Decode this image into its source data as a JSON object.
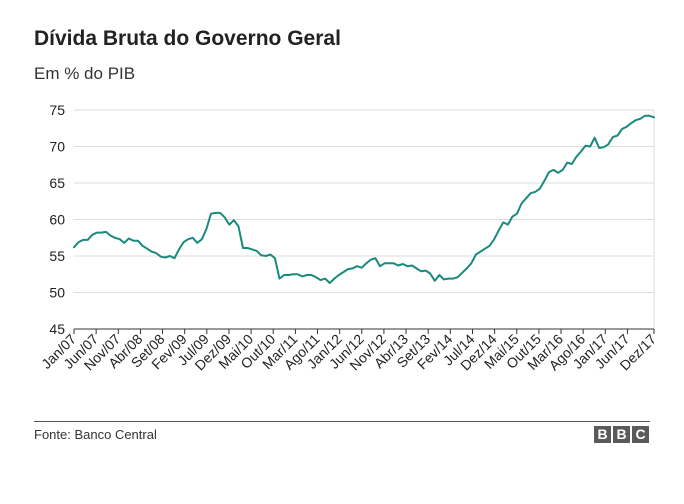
{
  "header": {
    "title": "Dívida Bruta do Governo Geral",
    "subtitle": "Em % do PIB"
  },
  "footer": {
    "source": "Fonte: Banco Central",
    "logo": [
      "B",
      "B",
      "C"
    ]
  },
  "colors": {
    "line": "#1a8a7e",
    "grid": "#dddddd",
    "axis": "#333333",
    "text": "#222222"
  },
  "chart_data": {
    "type": "line",
    "title": "Dívida Bruta do Governo Geral",
    "subtitle": "Em % do PIB",
    "xlabel": "",
    "ylabel": "",
    "ylim": [
      45,
      75
    ],
    "yticks": [
      45,
      50,
      55,
      60,
      65,
      70,
      75
    ],
    "grid": true,
    "x_start": "Jan/07",
    "x_end": "Dez/17",
    "x_tick_labels": [
      "Jan/07",
      "Jun/07",
      "Nov/07",
      "Abr/08",
      "Set/08",
      "Fev/09",
      "Jul/09",
      "Dez/09",
      "Mai/10",
      "Out/10",
      "Mar/11",
      "Ago/11",
      "Jan/12",
      "Jun/12",
      "Nov/12",
      "Abr/13",
      "Set/13",
      "Fev/14",
      "Jul/14",
      "Dez/14",
      "Mai/15",
      "Out/15",
      "Mar/16",
      "Ago/16",
      "Jan/17",
      "Jun/17",
      "Dez/17"
    ],
    "series": [
      {
        "values": [
          56.2,
          56.9,
          57.2,
          57.2,
          57.9,
          58.2,
          58.2,
          58.3,
          57.8,
          57.5,
          57.3,
          56.8,
          57.4,
          57.1,
          57.1,
          56.4,
          56.0,
          55.6,
          55.4,
          54.9,
          54.8,
          55.0,
          54.7,
          55.9,
          56.9,
          57.3,
          57.5,
          56.8,
          57.3,
          58.7,
          60.8,
          60.9,
          60.9,
          60.3,
          59.3,
          59.9,
          59.1,
          56.1,
          56.1,
          55.9,
          55.7,
          55.1,
          55.0,
          55.2,
          54.7,
          51.9,
          52.4,
          52.4,
          52.5,
          52.5,
          52.2,
          52.4,
          52.4,
          52.1,
          51.7,
          51.9,
          51.3,
          51.9,
          52.4,
          52.8,
          53.2,
          53.3,
          53.6,
          53.4,
          54.0,
          54.5,
          54.7,
          53.6,
          54.0,
          54.0,
          54.0,
          53.7,
          53.9,
          53.6,
          53.7,
          53.3,
          52.9,
          53.0,
          52.6,
          51.6,
          52.4,
          51.8,
          51.9,
          51.9,
          52.1,
          52.7,
          53.3,
          54.0,
          55.2,
          55.6,
          56.0,
          56.4,
          57.3,
          58.5,
          59.6,
          59.3,
          60.4,
          60.8,
          62.2,
          62.9,
          63.6,
          63.8,
          64.2,
          65.3,
          66.5,
          66.8,
          66.4,
          66.8,
          67.8,
          67.6,
          68.6,
          69.3,
          70.1,
          70.0,
          71.2,
          69.8,
          69.9,
          70.3,
          71.3,
          71.5,
          72.4,
          72.7,
          73.2,
          73.6,
          73.8,
          74.2,
          74.2,
          74.0
        ]
      }
    ]
  }
}
